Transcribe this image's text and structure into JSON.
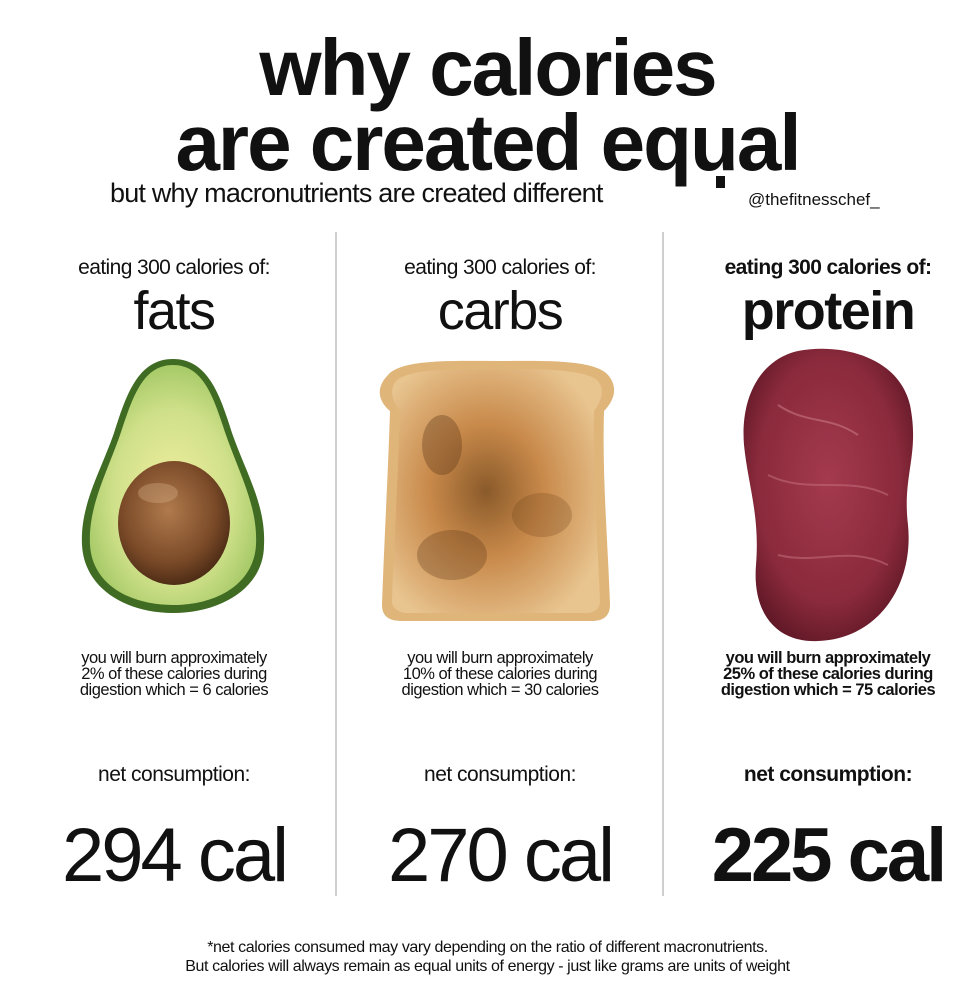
{
  "header": {
    "title_line1": "why calories",
    "title_line2": "are created equal",
    "subtitle": "but why macronutrients are created different",
    "handle": "@thefitnesschef_"
  },
  "columns": [
    {
      "eating_label": "eating 300 calories of:",
      "macro": "fats",
      "food_icon": "avocado",
      "burn_line1": "you will burn approximately",
      "burn_line2": "2% of these calories during",
      "burn_line3": "digestion which = 6 calories",
      "net_label": "net consumption:",
      "net_value": "294 cal"
    },
    {
      "eating_label": "eating 300 calories of:",
      "macro": "carbs",
      "food_icon": "toast",
      "burn_line1": "you will burn approximately",
      "burn_line2": "10% of these calories during",
      "burn_line3": "digestion which = 30 calories",
      "net_label": "net consumption:",
      "net_value": "270 cal"
    },
    {
      "eating_label": "eating 300 calories of:",
      "macro": "protein",
      "food_icon": "steak",
      "burn_line1": "you will burn approximately",
      "burn_line2": "25% of these calories during",
      "burn_line3": "digestion which = 75 calories",
      "net_label": "net consumption:",
      "net_value": "225 cal"
    }
  ],
  "footnote": {
    "line1": "*net calories consumed may vary depending on the ratio of different macronutrients.",
    "line2": "But calories will always remain as equal units of energy - just like grams are units of weight"
  },
  "colors": {
    "text": "#111111",
    "divider": "#cfcfcf",
    "avocado_flesh": "#b9d97a",
    "avocado_skin": "#3f6b23",
    "avocado_pit": "#7a4a28",
    "toast": "#c98a45",
    "steak": "#8a2a3b"
  }
}
